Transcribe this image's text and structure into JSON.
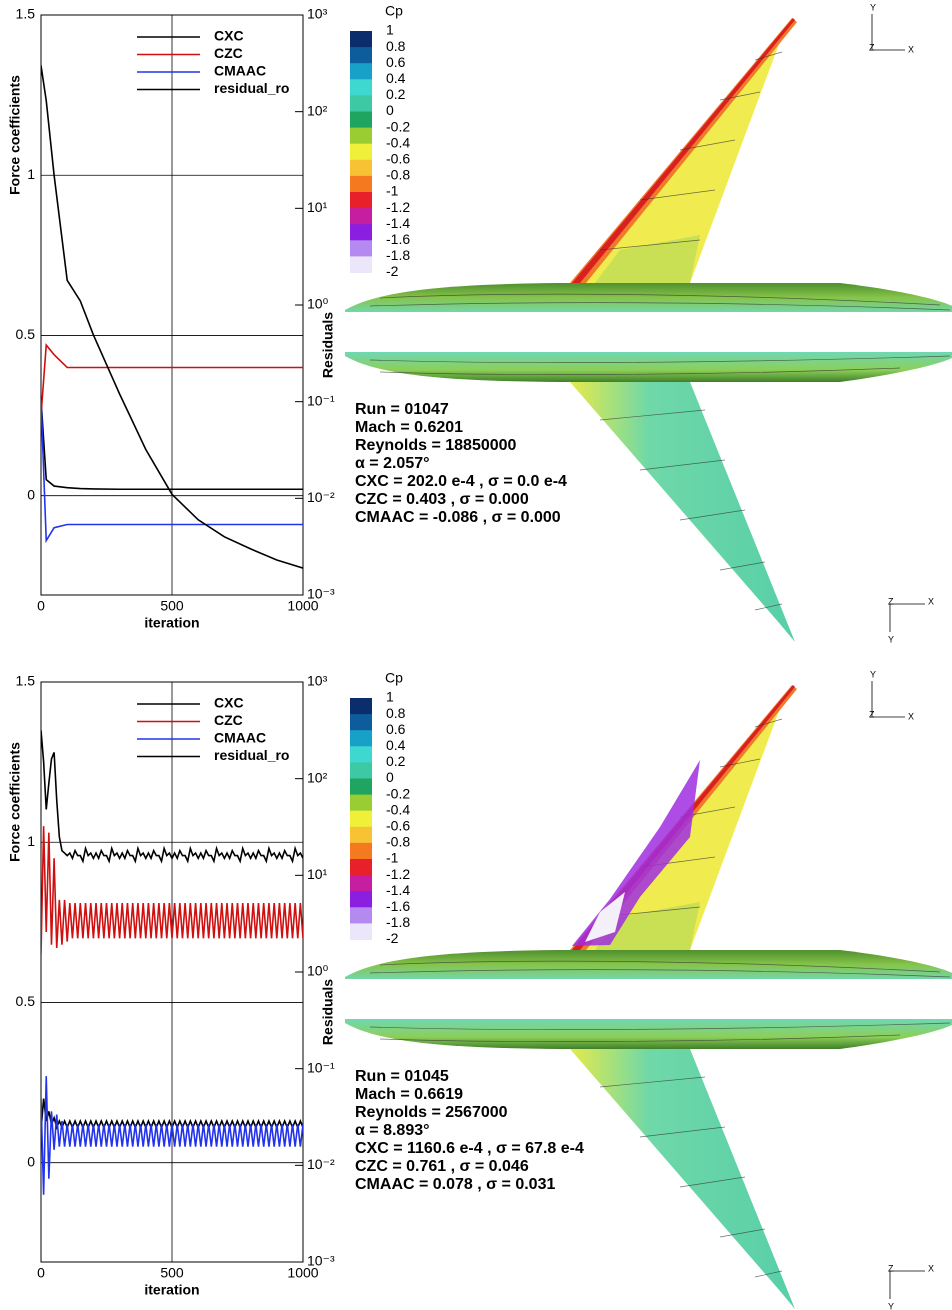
{
  "chart_data": [
    {
      "type": "line",
      "ylabel": "Force coefficients",
      "y2label": "Residuals",
      "xlabel": "iteration",
      "xlim": [
        0,
        1000
      ],
      "xticks": [
        0,
        500,
        1000
      ],
      "ylim": [
        -0.31,
        1.5
      ],
      "yticks": [
        0,
        0.5,
        1,
        1.5
      ],
      "y2lim": [
        0.001,
        1000
      ],
      "y2scale": "log",
      "y2ticks": [
        {
          "value": 0.001,
          "label": "10⁻³"
        },
        {
          "value": 0.01,
          "label": "10⁻²"
        },
        {
          "value": 0.1,
          "label": "10⁻¹"
        },
        {
          "value": 1,
          "label": "10⁰"
        },
        {
          "value": 10,
          "label": "10¹"
        },
        {
          "value": 100,
          "label": "10²"
        },
        {
          "value": 1000,
          "label": "10³"
        }
      ],
      "grid": true,
      "legend": "top-right",
      "x": [
        0,
        20,
        50,
        100,
        150,
        200,
        300,
        400,
        500,
        600,
        700,
        800,
        900,
        1000
      ],
      "series": [
        {
          "name": "CXC",
          "color": "#000000",
          "values": [
            0.3,
            0.05,
            0.03,
            0.025,
            0.022,
            0.021,
            0.02,
            0.02,
            0.02,
            0.02,
            0.02,
            0.02,
            0.02,
            0.02
          ]
        },
        {
          "name": "CZC",
          "color": "#d01010",
          "values": [
            0.25,
            0.47,
            0.44,
            0.4,
            0.4,
            0.4,
            0.4,
            0.4,
            0.4,
            0.4,
            0.4,
            0.4,
            0.4,
            0.4
          ]
        },
        {
          "name": "CMAAC",
          "color": "#2233ee",
          "values": [
            0.3,
            -0.14,
            -0.1,
            -0.09,
            -0.09,
            -0.09,
            -0.09,
            -0.09,
            -0.09,
            -0.09,
            -0.09,
            -0.09,
            -0.09,
            -0.09
          ]
        },
        {
          "name": "residual_ro",
          "color": "#000000",
          "axis": "y2",
          "values": [
            300,
            130,
            22,
            1.8,
            1.1,
            0.49,
            0.12,
            0.032,
            0.011,
            0.006,
            0.004,
            0.003,
            0.0023,
            0.0019
          ]
        }
      ],
      "colorbar": {
        "title": "Cp",
        "ticks": [
          1,
          0.8,
          0.6,
          0.4,
          0.2,
          0,
          -0.2,
          -0.4,
          -0.6,
          -0.8,
          -1,
          -1.2,
          -1.4,
          -1.6,
          -1.8,
          -2
        ],
        "colors": [
          "#0b2d6b",
          "#0d5d9c",
          "#17a0c8",
          "#3fd8d0",
          "#3cc9a4",
          "#1fa55f",
          "#9acd32",
          "#f0f03a",
          "#f7c234",
          "#f57a1f",
          "#e8202a",
          "#c61ea0",
          "#8b1ee0",
          "#b58af0",
          "#ece6fa"
        ]
      },
      "annotations": [
        "Run = 01047",
        "Mach = 0.6201",
        "Reynolds = 18850000",
        "α = 2.057°",
        "CXC = 202.0 e-4 , σ = 0.0 e-4",
        "CZC = 0.403 , σ = 0.000",
        "CMAAC = -0.086 , σ = 0.000"
      ],
      "view_axes": [
        "Y",
        "Z",
        "X",
        "Z",
        "X",
        "Y"
      ]
    },
    {
      "type": "line",
      "ylabel": "Force coefficients",
      "y2label": "Residuals",
      "xlabel": "iteration",
      "xlim": [
        0,
        1000
      ],
      "xticks": [
        0,
        500,
        1000
      ],
      "ylim": [
        -0.31,
        1.5
      ],
      "yticks": [
        0,
        0.5,
        1,
        1.5
      ],
      "y2lim": [
        0.001,
        1000
      ],
      "y2scale": "log",
      "y2ticks": [
        {
          "value": 0.001,
          "label": "10⁻³"
        },
        {
          "value": 0.01,
          "label": "10⁻²"
        },
        {
          "value": 0.1,
          "label": "10⁻¹"
        },
        {
          "value": 1,
          "label": "10⁰"
        },
        {
          "value": 10,
          "label": "10¹"
        },
        {
          "value": 100,
          "label": "10²"
        },
        {
          "value": 1000,
          "label": "10³"
        }
      ],
      "grid": true,
      "legend": "top-right",
      "x": [
        0,
        10,
        20,
        30,
        40,
        50,
        60,
        70,
        80,
        90,
        100,
        110,
        120,
        130,
        140,
        150,
        160,
        170,
        180,
        190,
        200,
        210,
        220,
        230,
        240,
        250,
        260,
        270,
        280,
        290,
        300,
        310,
        320,
        330,
        340,
        350,
        360,
        370,
        380,
        390,
        400,
        410,
        420,
        430,
        440,
        450,
        460,
        470,
        480,
        490,
        500,
        510,
        520,
        530,
        540,
        550,
        560,
        570,
        580,
        590,
        600,
        610,
        620,
        630,
        640,
        650,
        660,
        670,
        680,
        690,
        700,
        710,
        720,
        730,
        740,
        750,
        760,
        770,
        780,
        790,
        800,
        810,
        820,
        830,
        840,
        850,
        860,
        870,
        880,
        890,
        900,
        910,
        920,
        930,
        940,
        950,
        960,
        970,
        980,
        990,
        1000
      ],
      "series": [
        {
          "name": "CXC",
          "color": "#000000",
          "values": [
            0.1,
            0.2,
            0.13,
            0.16,
            0.12,
            0.14,
            0.11,
            0.13,
            0.11,
            0.13,
            0.11,
            0.13,
            0.11,
            0.13,
            0.11,
            0.13,
            0.11,
            0.13,
            0.11,
            0.13,
            0.11,
            0.13,
            0.11,
            0.13,
            0.11,
            0.13,
            0.11,
            0.13,
            0.11,
            0.13,
            0.11,
            0.13,
            0.11,
            0.13,
            0.11,
            0.13,
            0.11,
            0.13,
            0.11,
            0.13,
            0.11,
            0.13,
            0.11,
            0.13,
            0.11,
            0.13,
            0.11,
            0.13,
            0.11,
            0.13,
            0.11,
            0.13,
            0.11,
            0.13,
            0.11,
            0.13,
            0.11,
            0.13,
            0.11,
            0.13,
            0.11,
            0.13,
            0.11,
            0.13,
            0.11,
            0.13,
            0.11,
            0.13,
            0.11,
            0.13,
            0.11,
            0.13,
            0.11,
            0.13,
            0.11,
            0.13,
            0.11,
            0.13,
            0.11,
            0.13,
            0.11,
            0.13,
            0.11,
            0.13,
            0.11,
            0.13,
            0.11,
            0.13,
            0.11,
            0.13,
            0.11,
            0.13,
            0.11,
            0.13,
            0.11,
            0.13,
            0.11,
            0.13,
            0.11,
            0.13,
            0.11
          ]
        },
        {
          "name": "CZC",
          "color": "#d01010",
          "values": [
            0.65,
            1.05,
            0.72,
            1.03,
            0.68,
            0.95,
            0.67,
            0.82,
            0.68,
            0.82,
            0.69,
            0.81,
            0.7,
            0.81,
            0.7,
            0.81,
            0.7,
            0.81,
            0.7,
            0.81,
            0.7,
            0.81,
            0.7,
            0.81,
            0.7,
            0.81,
            0.7,
            0.81,
            0.7,
            0.81,
            0.7,
            0.81,
            0.7,
            0.81,
            0.7,
            0.81,
            0.7,
            0.81,
            0.7,
            0.81,
            0.7,
            0.81,
            0.7,
            0.81,
            0.7,
            0.81,
            0.7,
            0.81,
            0.7,
            0.81,
            0.7,
            0.81,
            0.7,
            0.81,
            0.7,
            0.81,
            0.7,
            0.81,
            0.7,
            0.81,
            0.7,
            0.81,
            0.7,
            0.81,
            0.7,
            0.81,
            0.7,
            0.81,
            0.7,
            0.81,
            0.7,
            0.81,
            0.7,
            0.81,
            0.7,
            0.81,
            0.7,
            0.81,
            0.7,
            0.81,
            0.7,
            0.81,
            0.7,
            0.81,
            0.7,
            0.81,
            0.7,
            0.81,
            0.7,
            0.81,
            0.7,
            0.81,
            0.7,
            0.81,
            0.7,
            0.81,
            0.7,
            0.81,
            0.7,
            0.81,
            0.7
          ]
        },
        {
          "name": "CMAAC",
          "color": "#2233ee",
          "values": [
            0.2,
            -0.1,
            0.27,
            -0.05,
            0.16,
            0.04,
            0.15,
            0.05,
            0.13,
            0.05,
            0.12,
            0.05,
            0.12,
            0.05,
            0.12,
            0.05,
            0.12,
            0.05,
            0.12,
            0.05,
            0.12,
            0.05,
            0.12,
            0.05,
            0.12,
            0.05,
            0.12,
            0.05,
            0.12,
            0.05,
            0.12,
            0.05,
            0.12,
            0.05,
            0.12,
            0.05,
            0.12,
            0.05,
            0.12,
            0.05,
            0.12,
            0.05,
            0.12,
            0.05,
            0.12,
            0.05,
            0.12,
            0.05,
            0.12,
            0.05,
            0.12,
            0.05,
            0.12,
            0.05,
            0.12,
            0.05,
            0.12,
            0.05,
            0.12,
            0.05,
            0.12,
            0.05,
            0.12,
            0.05,
            0.12,
            0.05,
            0.12,
            0.05,
            0.12,
            0.05,
            0.12,
            0.05,
            0.12,
            0.05,
            0.12,
            0.05,
            0.12,
            0.05,
            0.12,
            0.05,
            0.12,
            0.05,
            0.12,
            0.05,
            0.12,
            0.05,
            0.12,
            0.05,
            0.12,
            0.05,
            0.12,
            0.05,
            0.12,
            0.05,
            0.12,
            0.05,
            0.12,
            0.05,
            0.12,
            0.05,
            0.12
          ]
        },
        {
          "name": "residual_ro",
          "color": "#000000",
          "axis": "y2",
          "values": [
            316,
            150,
            48,
            90,
            160,
            187,
            60,
            25,
            18,
            17,
            16,
            17,
            15,
            18,
            16,
            16,
            14,
            19,
            16,
            17,
            15,
            17,
            15,
            18,
            16,
            16,
            14,
            19,
            16,
            17,
            15,
            17,
            15,
            18,
            16,
            16,
            14,
            19,
            16,
            17,
            15,
            17,
            15,
            18,
            16,
            16,
            14,
            19,
            16,
            17,
            15,
            17,
            15,
            18,
            16,
            16,
            14,
            19,
            16,
            17,
            15,
            17,
            15,
            18,
            16,
            16,
            14,
            19,
            16,
            17,
            15,
            17,
            15,
            18,
            16,
            16,
            14,
            19,
            16,
            17,
            15,
            17,
            15,
            18,
            16,
            16,
            14,
            19,
            16,
            17,
            15,
            17,
            15,
            18,
            16,
            16,
            14,
            19,
            16,
            17,
            15
          ]
        }
      ],
      "colorbar": {
        "title": "Cp",
        "ticks": [
          1,
          0.8,
          0.6,
          0.4,
          0.2,
          0,
          -0.2,
          -0.4,
          -0.6,
          -0.8,
          -1,
          -1.2,
          -1.4,
          -1.6,
          -1.8,
          -2
        ],
        "colors": [
          "#0b2d6b",
          "#0d5d9c",
          "#17a0c8",
          "#3fd8d0",
          "#3cc9a4",
          "#1fa55f",
          "#9acd32",
          "#f0f03a",
          "#f7c234",
          "#f57a1f",
          "#e8202a",
          "#c61ea0",
          "#8b1ee0",
          "#b58af0",
          "#ece6fa"
        ]
      },
      "annotations": [
        "Run = 01045",
        "Mach = 0.6619",
        "Reynolds = 2567000",
        "α = 8.893°",
        "CXC = 1160.6 e-4 , σ = 67.8 e-4",
        "CZC = 0.761 , σ = 0.046",
        "CMAAC = 0.078 , σ = 0.031"
      ],
      "view_axes": [
        "Y",
        "Z",
        "X",
        "Z",
        "X",
        "Y"
      ]
    }
  ]
}
